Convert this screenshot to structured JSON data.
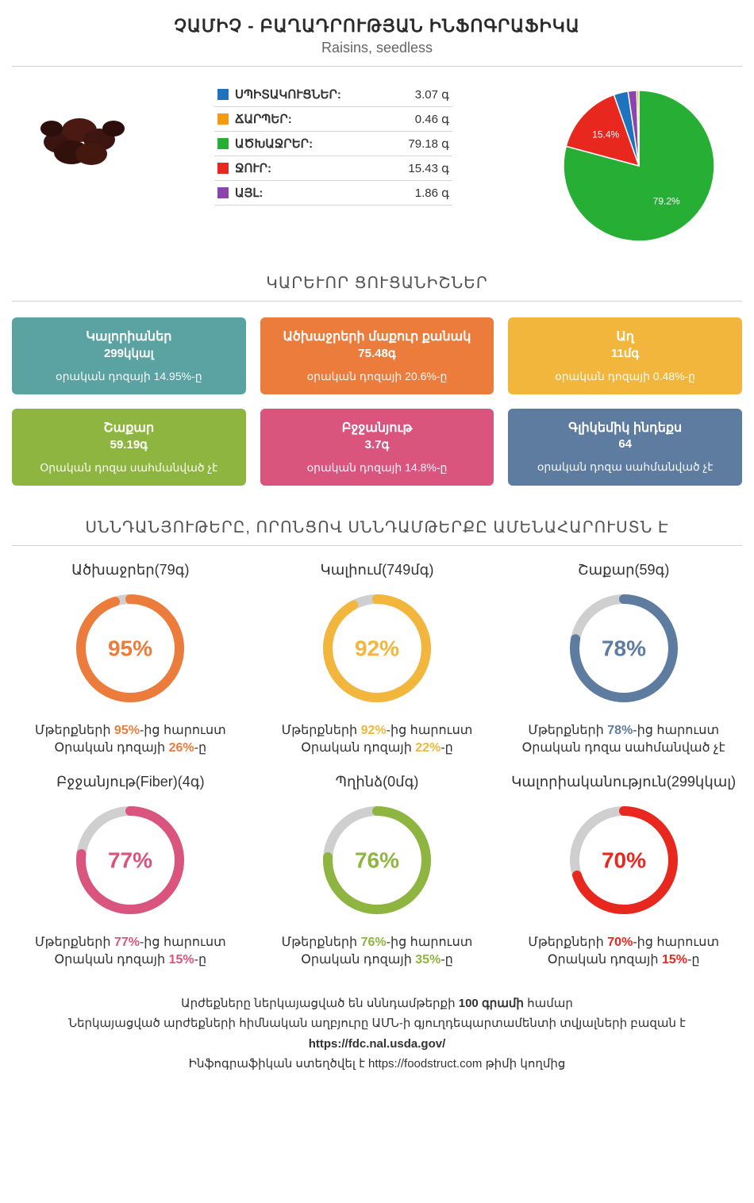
{
  "header": {
    "title": "ՉԱՄԻՉ - ԲԱՂԱԴՐՈՒԹՅԱՆ ԻՆՖՈԳՐԱՖԻԿԱ",
    "subtitle": "Raisins, seedless"
  },
  "macros": {
    "rows": [
      {
        "label": "ՍՊԻՏԱԿՈՒՑՆԵՐ:",
        "value": "3.07 գ",
        "color": "#1e73be"
      },
      {
        "label": "ՃԱՐՊԵՐ:",
        "value": "0.46 գ",
        "color": "#f39c12"
      },
      {
        "label": "ԱԾԽԱՋՐԵՐ:",
        "value": "79.18 գ",
        "color": "#27ae34"
      },
      {
        "label": "ՋՈՒՐ:",
        "value": "15.43 գ",
        "color": "#e8281f"
      },
      {
        "label": "ԱՅԼ:",
        "value": "1.86 գ",
        "color": "#8e44ad"
      }
    ],
    "pie": {
      "slices": [
        {
          "value": 79.18,
          "color": "#27ae34",
          "label": "79.2%"
        },
        {
          "value": 15.43,
          "color": "#e8281f",
          "label": "15.4%"
        },
        {
          "value": 3.07,
          "color": "#1e73be",
          "label": ""
        },
        {
          "value": 1.86,
          "color": "#8e44ad",
          "label": ""
        },
        {
          "value": 0.46,
          "color": "#f39c12",
          "label": ""
        }
      ],
      "label_color": "#ffffff",
      "label_fontsize": 12
    }
  },
  "key_indicators": {
    "title": "ԿԱՐԵՒՈՐ ՑՈՒՑԱՆԻՇՆԵՐ",
    "cards": [
      {
        "title": "Կալորիաներ",
        "value": "299կկալ",
        "sub": "օրական դոզայի 14.95%-ը",
        "bg": "#5ba3a3"
      },
      {
        "title": "Ածխաջրերի մաքուր քանակ",
        "value": "75.48գ",
        "sub": "օրական դոզայի 20.6%-ը",
        "bg": "#ec7c3c"
      },
      {
        "title": "Աղ",
        "value": "11մգ",
        "sub": "օրական դոզայի 0.48%-ը",
        "bg": "#f2b63c"
      },
      {
        "title": "Շաքար",
        "value": "59.19գ",
        "sub": "Օրական դոզա սահմանված չէ",
        "bg": "#8eb53f"
      },
      {
        "title": "Բջջանյութ",
        "value": "3.7գ",
        "sub": "օրական դոզայի 14.8%-ը",
        "bg": "#d9557e"
      },
      {
        "title": "Գլիկեմիկ ինդեքս",
        "value": "64",
        "sub": "օրական դոզա սահմանված չէ",
        "bg": "#5e7ca0"
      }
    ]
  },
  "richest": {
    "title": "ՍՆՆԴԱՆՅՈՒԹԵՐԸ, ՈՐՈՆՑՈՎ ՍՆՆԴԱՄԹԵՐՔԸ ԱՄԵՆԱՀԱՐՈՒՍՏՆ Է",
    "items": [
      {
        "name": "Ածխաջրեր(79գ)",
        "percent": 95,
        "color": "#ec7c3c",
        "line1_pre": "Մթերքների ",
        "line1_hl": "95%",
        "line1_post": "-ից հարուստ",
        "line2_pre": "Օրական դոզայի ",
        "line2_hl": "26%",
        "line2_post": "-ը"
      },
      {
        "name": "Կալիում(749մգ)",
        "percent": 92,
        "color": "#f2b63c",
        "line1_pre": "Մթերքների ",
        "line1_hl": "92%",
        "line1_post": "-ից հարուստ",
        "line2_pre": "Օրական դոզայի ",
        "line2_hl": "22%",
        "line2_post": "-ը"
      },
      {
        "name": "Շաքար(59գ)",
        "percent": 78,
        "color": "#5e7ca0",
        "line1_pre": "Մթերքների ",
        "line1_hl": "78%",
        "line1_post": "-ից հարուստ",
        "line2_pre": "Օրական դոզա սահմանված չէ",
        "line2_hl": "",
        "line2_post": ""
      },
      {
        "name": "Բջջանյութ(Fiber)(4գ)",
        "percent": 77,
        "color": "#d9557e",
        "line1_pre": "Մթերքների ",
        "line1_hl": "77%",
        "line1_post": "-ից հարուստ",
        "line2_pre": "Օրական դոզայի ",
        "line2_hl": "15%",
        "line2_post": "-ը"
      },
      {
        "name": "Պղինձ(0մգ)",
        "percent": 76,
        "color": "#8eb53f",
        "line1_pre": "Մթերքների ",
        "line1_hl": "76%",
        "line1_post": "-ից հարուստ",
        "line2_pre": "Օրական դոզայի ",
        "line2_hl": "35%",
        "line2_post": "-ը"
      },
      {
        "name": "Կալորիականություն(299կկալ)",
        "percent": 70,
        "color": "#e8281f",
        "line1_pre": "Մթերքների ",
        "line1_hl": "70%",
        "line1_post": "-ից հարուստ",
        "line2_pre": "Օրական դոզայի ",
        "line2_hl": "15%",
        "line2_post": "-ը"
      }
    ],
    "track_color": "#cfcfcf"
  },
  "footer": {
    "l1_pre": "Արժեքները ներկայացված են սննդամթերքի ",
    "l1_bold": "100 գրամի",
    "l1_post": " համար",
    "l2": "Ներկայացված արժեքների հիմնական աղբյուրը ԱՄՆ-ի գյուղդեպարտամենտի տվյալների բազան է",
    "l3": "https://fdc.nal.usda.gov/",
    "l4": "Ինֆոգրաֆիկան ստեղծվել է https://foodstruct.com թիմի կողմից"
  }
}
